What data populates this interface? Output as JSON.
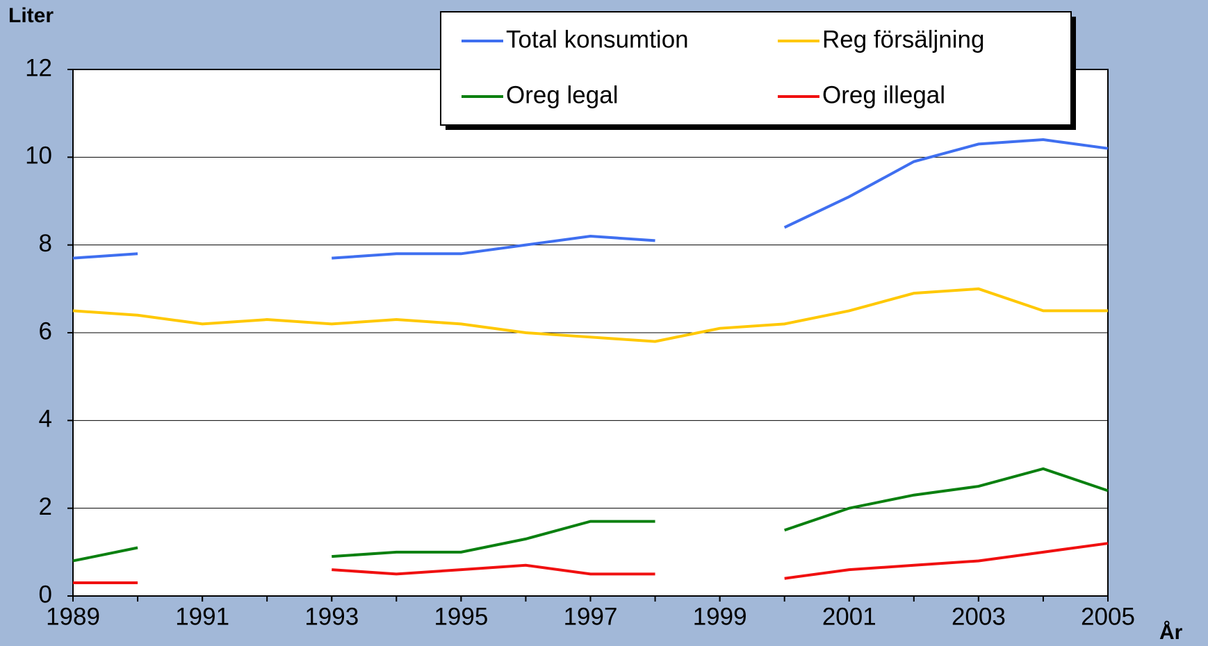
{
  "chart_data": {
    "type": "line",
    "y_label": "Liter",
    "x_label": "År",
    "x": [
      1989,
      1990,
      1991,
      1992,
      1993,
      1994,
      1995,
      1996,
      1997,
      1998,
      1999,
      2000,
      2001,
      2002,
      2003,
      2004,
      2005
    ],
    "series": [
      {
        "name": "Total konsumtion",
        "color": "#3f6ff0",
        "values": [
          7.7,
          7.8,
          null,
          null,
          7.7,
          7.8,
          7.8,
          8.0,
          8.2,
          8.1,
          null,
          8.4,
          9.1,
          9.9,
          10.3,
          10.4,
          10.2
        ]
      },
      {
        "name": "Reg försäljning",
        "color": "#ffc800",
        "values": [
          6.5,
          6.4,
          6.2,
          6.3,
          6.2,
          6.3,
          6.2,
          6.0,
          5.9,
          5.8,
          6.1,
          6.2,
          6.5,
          6.9,
          7.0,
          6.5,
          6.5
        ]
      },
      {
        "name": "Oreg legal",
        "color": "#0a8010",
        "values": [
          0.8,
          1.1,
          null,
          null,
          0.9,
          1.0,
          1.0,
          1.3,
          1.7,
          1.7,
          null,
          1.5,
          2.0,
          2.3,
          2.5,
          2.9,
          2.4
        ]
      },
      {
        "name": "Oreg illegal",
        "color": "#f01010",
        "values": [
          0.3,
          0.3,
          null,
          null,
          0.6,
          0.5,
          0.6,
          0.7,
          0.5,
          0.5,
          null,
          0.4,
          0.6,
          0.7,
          0.8,
          1.0,
          1.2
        ]
      }
    ],
    "xlim": [
      1989,
      2005
    ],
    "xticks": [
      1989,
      1991,
      1993,
      1995,
      1997,
      1999,
      2001,
      2003,
      2005
    ],
    "ylim": [
      0,
      12
    ],
    "yticks": [
      0,
      2,
      4,
      6,
      8,
      10,
      12
    ],
    "grid": true,
    "legend_position": "top"
  }
}
